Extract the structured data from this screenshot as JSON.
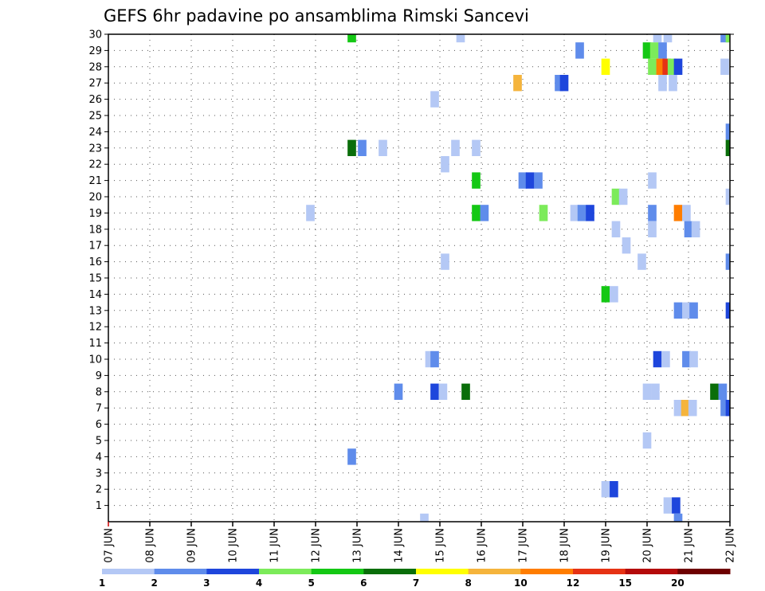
{
  "chart_data": {
    "type": "heatmap",
    "title": "GEFS 6hr padavine po ansamblima Rimski Sancevi",
    "x_tick_labels": [
      "07 JUN",
      "08 JUN",
      "09 JUN",
      "10 JUN",
      "11 JUN",
      "12 JUN",
      "13 JUN",
      "14 JUN",
      "15 JUN",
      "16 JUN",
      "17 JUN",
      "18 JUN",
      "19 JUN",
      "20 JUN",
      "21 JUN",
      "22 JUN"
    ],
    "y_tick_labels": [
      "1",
      "2",
      "3",
      "4",
      "5",
      "6",
      "7",
      "8",
      "9",
      "10",
      "11",
      "12",
      "13",
      "14",
      "15",
      "16",
      "17",
      "18",
      "19",
      "20",
      "21",
      "22",
      "23",
      "24",
      "25",
      "26",
      "27",
      "28",
      "29",
      "30"
    ],
    "xlim": [
      0,
      60
    ],
    "ylim": [
      0,
      30
    ],
    "grid": true,
    "colorbar": {
      "labels": [
        "1",
        "2",
        "3",
        "4",
        "5",
        "6",
        "7",
        "8",
        "10",
        "12",
        "15",
        "20"
      ],
      "colors": [
        "#b4c8f5",
        "#5f8ceb",
        "#1e46dc",
        "#7ceb5a",
        "#14c814",
        "#0a6e0a",
        "#ffff00",
        "#f5b43c",
        "#ff7d00",
        "#e63214",
        "#b40a0a",
        "#6e0000"
      ]
    },
    "note": "x = 6-hour step index from 07 JUN 00 UTC; y = ensemble member; v = color class index",
    "cells": [
      {
        "x": 23.5,
        "y": 30,
        "v": 4
      },
      {
        "x": 34,
        "y": 30,
        "v": 0
      },
      {
        "x": 53,
        "y": 30,
        "v": 0
      },
      {
        "x": 54,
        "y": 30,
        "v": 0
      },
      {
        "x": 59.5,
        "y": 30,
        "v": 1
      },
      {
        "x": 60,
        "y": 30,
        "v": 3
      },
      {
        "x": 45.5,
        "y": 29,
        "v": 1
      },
      {
        "x": 52,
        "y": 29,
        "v": 4
      },
      {
        "x": 52.7,
        "y": 29,
        "v": 3
      },
      {
        "x": 53.5,
        "y": 29,
        "v": 1
      },
      {
        "x": 48,
        "y": 28,
        "v": 6
      },
      {
        "x": 52.5,
        "y": 28,
        "v": 3
      },
      {
        "x": 53.3,
        "y": 28,
        "v": 8
      },
      {
        "x": 53.9,
        "y": 28,
        "v": 9
      },
      {
        "x": 54.4,
        "y": 28,
        "v": 3
      },
      {
        "x": 55,
        "y": 28,
        "v": 2
      },
      {
        "x": 59.5,
        "y": 28,
        "v": 0
      },
      {
        "x": 39.5,
        "y": 27,
        "v": 7
      },
      {
        "x": 43.5,
        "y": 27,
        "v": 1
      },
      {
        "x": 44,
        "y": 27,
        "v": 2
      },
      {
        "x": 53.5,
        "y": 27,
        "v": 0
      },
      {
        "x": 54.5,
        "y": 27,
        "v": 0
      },
      {
        "x": 31.5,
        "y": 26,
        "v": 0
      },
      {
        "x": 60,
        "y": 24,
        "v": 1
      },
      {
        "x": 23.5,
        "y": 23,
        "v": 5
      },
      {
        "x": 24.5,
        "y": 23,
        "v": 1
      },
      {
        "x": 26.5,
        "y": 23,
        "v": 0
      },
      {
        "x": 33.5,
        "y": 23,
        "v": 0
      },
      {
        "x": 35.5,
        "y": 23,
        "v": 0
      },
      {
        "x": 60,
        "y": 23,
        "v": 5
      },
      {
        "x": 32.5,
        "y": 22,
        "v": 0
      },
      {
        "x": 35.5,
        "y": 21,
        "v": 4
      },
      {
        "x": 40,
        "y": 21,
        "v": 1
      },
      {
        "x": 40.7,
        "y": 21,
        "v": 2
      },
      {
        "x": 41.5,
        "y": 21,
        "v": 1
      },
      {
        "x": 52.5,
        "y": 21,
        "v": 0
      },
      {
        "x": 49,
        "y": 20,
        "v": 3
      },
      {
        "x": 49.7,
        "y": 20,
        "v": 0
      },
      {
        "x": 60,
        "y": 20,
        "v": 0
      },
      {
        "x": 19.5,
        "y": 19,
        "v": 0
      },
      {
        "x": 35.5,
        "y": 19,
        "v": 4
      },
      {
        "x": 36.3,
        "y": 19,
        "v": 1
      },
      {
        "x": 42,
        "y": 19,
        "v": 3
      },
      {
        "x": 45,
        "y": 19,
        "v": 0
      },
      {
        "x": 45.7,
        "y": 19,
        "v": 1
      },
      {
        "x": 46.5,
        "y": 19,
        "v": 2
      },
      {
        "x": 52.5,
        "y": 19,
        "v": 1
      },
      {
        "x": 55,
        "y": 19,
        "v": 8
      },
      {
        "x": 55.8,
        "y": 19,
        "v": 0
      },
      {
        "x": 49,
        "y": 18,
        "v": 0
      },
      {
        "x": 52.5,
        "y": 18,
        "v": 0
      },
      {
        "x": 56,
        "y": 18,
        "v": 1
      },
      {
        "x": 56.7,
        "y": 18,
        "v": 0
      },
      {
        "x": 50,
        "y": 17,
        "v": 0
      },
      {
        "x": 32.5,
        "y": 16,
        "v": 0
      },
      {
        "x": 51.5,
        "y": 16,
        "v": 0
      },
      {
        "x": 60,
        "y": 16,
        "v": 1
      },
      {
        "x": 48,
        "y": 14,
        "v": 4
      },
      {
        "x": 48.8,
        "y": 14,
        "v": 0
      },
      {
        "x": 55,
        "y": 13,
        "v": 1
      },
      {
        "x": 55.8,
        "y": 13,
        "v": 0
      },
      {
        "x": 56.5,
        "y": 13,
        "v": 1
      },
      {
        "x": 60,
        "y": 13,
        "v": 2
      },
      {
        "x": 31,
        "y": 10,
        "v": 0
      },
      {
        "x": 31.5,
        "y": 10,
        "v": 1
      },
      {
        "x": 53,
        "y": 10,
        "v": 2
      },
      {
        "x": 53.8,
        "y": 10,
        "v": 0
      },
      {
        "x": 55.8,
        "y": 10,
        "v": 1
      },
      {
        "x": 56.5,
        "y": 10,
        "v": 0
      },
      {
        "x": 28,
        "y": 8,
        "v": 1
      },
      {
        "x": 31.5,
        "y": 8,
        "v": 2
      },
      {
        "x": 32.3,
        "y": 8,
        "v": 0
      },
      {
        "x": 34.5,
        "y": 8,
        "v": 5
      },
      {
        "x": 52,
        "y": 8,
        "v": 0
      },
      {
        "x": 52.8,
        "y": 8,
        "v": 0
      },
      {
        "x": 58.5,
        "y": 8,
        "v": 5
      },
      {
        "x": 59.3,
        "y": 8,
        "v": 1
      },
      {
        "x": 55,
        "y": 7,
        "v": 0
      },
      {
        "x": 55.7,
        "y": 7,
        "v": 7
      },
      {
        "x": 56.4,
        "y": 7,
        "v": 0
      },
      {
        "x": 59.5,
        "y": 7,
        "v": 1
      },
      {
        "x": 60,
        "y": 7,
        "v": 2
      },
      {
        "x": 52,
        "y": 5,
        "v": 0
      },
      {
        "x": 23.5,
        "y": 4,
        "v": 1
      },
      {
        "x": 48,
        "y": 2,
        "v": 0
      },
      {
        "x": 48.8,
        "y": 2,
        "v": 2
      },
      {
        "x": 54,
        "y": 1,
        "v": 0
      },
      {
        "x": 54.8,
        "y": 1,
        "v": 2
      },
      {
        "x": 30.5,
        "y": 0,
        "v": 0
      },
      {
        "x": 55,
        "y": 0,
        "v": 1
      }
    ]
  }
}
